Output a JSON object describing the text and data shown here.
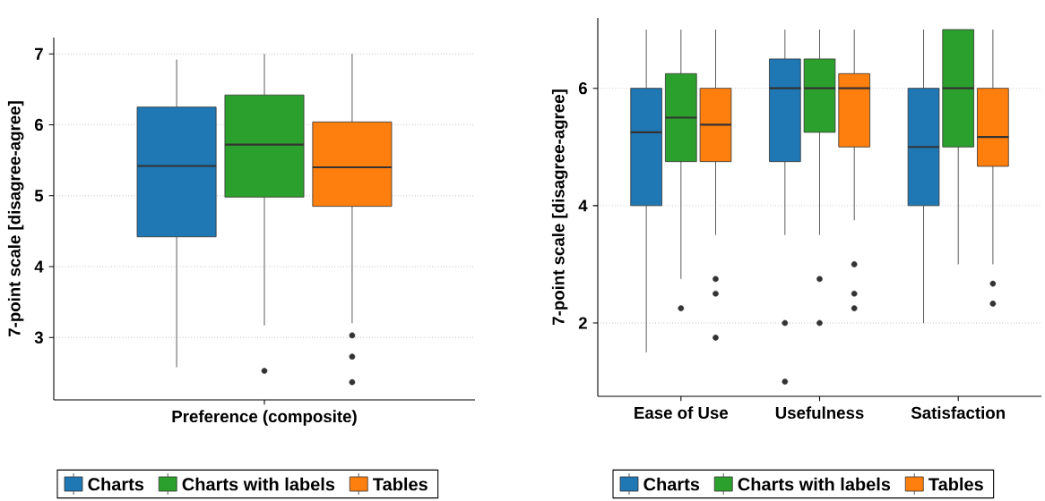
{
  "chart_data": [
    {
      "type": "box",
      "categories": [
        "Preference (composite)"
      ],
      "ylabel": "7-point scale [disagree-agree]",
      "ylim": [
        2.12,
        7.23
      ],
      "yticks": [
        3,
        4,
        5,
        6,
        7
      ],
      "grid": "y",
      "legend": "bottom",
      "series": [
        {
          "name": "Charts",
          "color": "#1f77b4",
          "boxes": [
            {
              "low": 2.58,
              "q1": 4.42,
              "median": 5.42,
              "q3": 6.25,
              "high": 6.92
            }
          ]
        },
        {
          "name": "Charts with labels",
          "color": "#2ca02c",
          "boxes": [
            {
              "low": 3.17,
              "q1": 4.98,
              "median": 5.72,
              "q3": 6.42,
              "high": 7,
              "outliers": [
                2.53
              ]
            }
          ]
        },
        {
          "name": "Tables",
          "color": "#ff7f0e",
          "boxes": [
            {
              "low": 3.2,
              "q1": 4.85,
              "median": 5.4,
              "q3": 6.04,
              "high": 7,
              "outliers": [
                3.03,
                2.73,
                2.37
              ]
            }
          ]
        }
      ]
    },
    {
      "type": "box",
      "categories": [
        "Ease of Use",
        "Usefulness",
        "Satisfaction"
      ],
      "ylabel": "7-point scale [disagree-agree]",
      "ylim": [
        0.75,
        7.2
      ],
      "yticks": [
        2,
        4,
        6
      ],
      "grid": "y",
      "legend": "bottom",
      "series": [
        {
          "name": "Charts",
          "color": "#1f77b4",
          "boxes": [
            {
              "low": 1.5,
              "q1": 4,
              "median": 5.25,
              "q3": 6,
              "high": 7
            },
            {
              "low": 3.5,
              "q1": 4.75,
              "median": 6,
              "q3": 6.5,
              "high": 7,
              "outliers": [
                2,
                1
              ]
            },
            {
              "low": 2,
              "q1": 4,
              "median": 5,
              "q3": 6,
              "high": 7
            }
          ]
        },
        {
          "name": "Charts with labels",
          "color": "#2ca02c",
          "boxes": [
            {
              "low": 2.75,
              "q1": 4.75,
              "median": 5.5,
              "q3": 6.25,
              "high": 7,
              "outliers": [
                2.25
              ]
            },
            {
              "low": 3.5,
              "q1": 5.25,
              "median": 6,
              "q3": 6.5,
              "high": 7,
              "outliers": [
                2.75,
                2
              ]
            },
            {
              "low": 3,
              "q1": 5,
              "median": 6,
              "q3": 7,
              "high": 7
            }
          ]
        },
        {
          "name": "Tables",
          "color": "#ff7f0e",
          "boxes": [
            {
              "low": 3.5,
              "q1": 4.75,
              "median": 5.38,
              "q3": 6,
              "high": 7,
              "outliers": [
                2.75,
                2.5,
                1.75
              ]
            },
            {
              "low": 3.75,
              "q1": 5,
              "median": 6,
              "q3": 6.25,
              "high": 7,
              "outliers": [
                3,
                2.5,
                2.25
              ]
            },
            {
              "low": 3,
              "q1": 4.67,
              "median": 5.17,
              "q3": 6,
              "high": 7,
              "outliers": [
                2.67,
                2.33
              ]
            }
          ]
        }
      ]
    }
  ]
}
